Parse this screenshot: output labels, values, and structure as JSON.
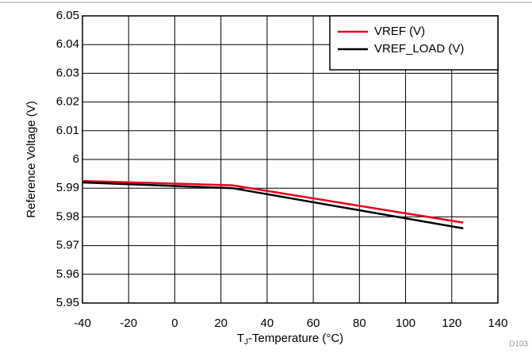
{
  "chart_data": {
    "type": "line",
    "ylabel": "Reference Voltage (V)",
    "xlabel": {
      "symbol": "T",
      "subscript": "J",
      "text": "-Temperature (°C)"
    },
    "note": "D103",
    "xlim": [
      -40,
      140
    ],
    "xticks": [
      -40,
      -20,
      0,
      20,
      40,
      60,
      80,
      100,
      120,
      140
    ],
    "ylim": [
      5.95,
      6.05
    ],
    "yticks": [
      5.95,
      5.96,
      5.97,
      5.98,
      5.99,
      6,
      6.01,
      6.02,
      6.03,
      6.04,
      6.05
    ],
    "grid": true,
    "legend": "upper right",
    "series": [
      {
        "name": "VREF (V)",
        "color": "#e8001c",
        "x": [
          -40,
          25,
          125
        ],
        "values": [
          5.9925,
          5.991,
          5.978
        ]
      },
      {
        "name": "VREF_LOAD (V)",
        "color": "#000000",
        "x": [
          -40,
          25,
          125
        ],
        "values": [
          5.992,
          5.99,
          5.976
        ]
      }
    ]
  }
}
